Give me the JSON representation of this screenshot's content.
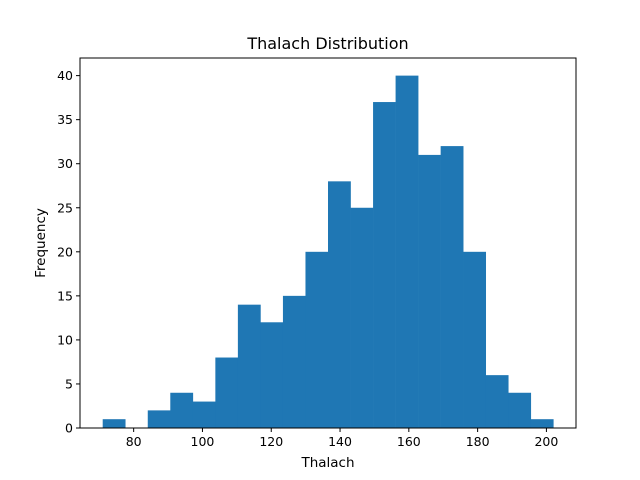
{
  "chart_data": {
    "type": "bar",
    "title": "Thalach Distribution",
    "xlabel": "Thalach",
    "ylabel": "Frequency",
    "xlim": [
      64.4,
      208.6
    ],
    "ylim": [
      0,
      42
    ],
    "xticks": [
      80,
      100,
      120,
      140,
      160,
      180,
      200
    ],
    "yticks": [
      0,
      5,
      10,
      15,
      20,
      25,
      30,
      35,
      40
    ],
    "bin_start": 71,
    "bin_width": 6.55,
    "counts": [
      1,
      0,
      2,
      4,
      3,
      8,
      14,
      12,
      15,
      20,
      28,
      25,
      37,
      40,
      31,
      32,
      20,
      6,
      4,
      1
    ],
    "bar_color": "#1f77b4",
    "grid": false,
    "legend": "none"
  }
}
